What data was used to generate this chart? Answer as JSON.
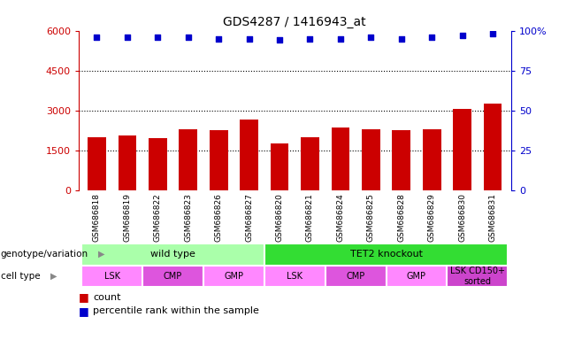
{
  "title": "GDS4287 / 1416943_at",
  "samples": [
    "GSM686818",
    "GSM686819",
    "GSM686822",
    "GSM686823",
    "GSM686826",
    "GSM686827",
    "GSM686820",
    "GSM686821",
    "GSM686824",
    "GSM686825",
    "GSM686828",
    "GSM686829",
    "GSM686830",
    "GSM686831"
  ],
  "counts": [
    2000,
    2050,
    1950,
    2300,
    2250,
    2650,
    1750,
    2000,
    2350,
    2300,
    2250,
    2300,
    3050,
    3250
  ],
  "percentile_ranks": [
    96,
    96,
    96,
    96,
    95,
    95,
    94,
    95,
    95,
    96,
    95,
    96,
    97,
    98
  ],
  "bar_color": "#cc0000",
  "dot_color": "#0000cc",
  "ylim_left": [
    0,
    6000
  ],
  "ylim_right": [
    0,
    100
  ],
  "yticks_left": [
    0,
    1500,
    3000,
    4500,
    6000
  ],
  "yticks_right": [
    0,
    25,
    50,
    75,
    100
  ],
  "ytick_labels_left": [
    "0",
    "1500",
    "3000",
    "4500",
    "6000"
  ],
  "ytick_labels_right": [
    "0",
    "25",
    "50",
    "75",
    "100%"
  ],
  "grid_values": [
    1500,
    3000,
    4500
  ],
  "genotype_groups": [
    {
      "label": "wild type",
      "start": 0,
      "end": 6,
      "color": "#aaffaa"
    },
    {
      "label": "TET2 knockout",
      "start": 6,
      "end": 14,
      "color": "#33dd33"
    }
  ],
  "cell_type_groups": [
    {
      "label": "LSK",
      "start": 0,
      "end": 2,
      "color": "#ff88ff"
    },
    {
      "label": "CMP",
      "start": 2,
      "end": 4,
      "color": "#dd55dd"
    },
    {
      "label": "GMP",
      "start": 4,
      "end": 6,
      "color": "#ff88ff"
    },
    {
      "label": "LSK",
      "start": 6,
      "end": 8,
      "color": "#ff88ff"
    },
    {
      "label": "CMP",
      "start": 8,
      "end": 10,
      "color": "#dd55dd"
    },
    {
      "label": "GMP",
      "start": 10,
      "end": 12,
      "color": "#ff88ff"
    },
    {
      "label": "LSK CD150+\nsorted",
      "start": 12,
      "end": 14,
      "color": "#cc44cc"
    }
  ],
  "right_axis_color": "#0000cc",
  "left_axis_color": "#cc0000",
  "genotype_label": "genotype/variation",
  "celltype_label": "cell type",
  "legend_count": "count",
  "legend_percentile": "percentile rank within the sample",
  "xticklabel_bg": "#cccccc"
}
